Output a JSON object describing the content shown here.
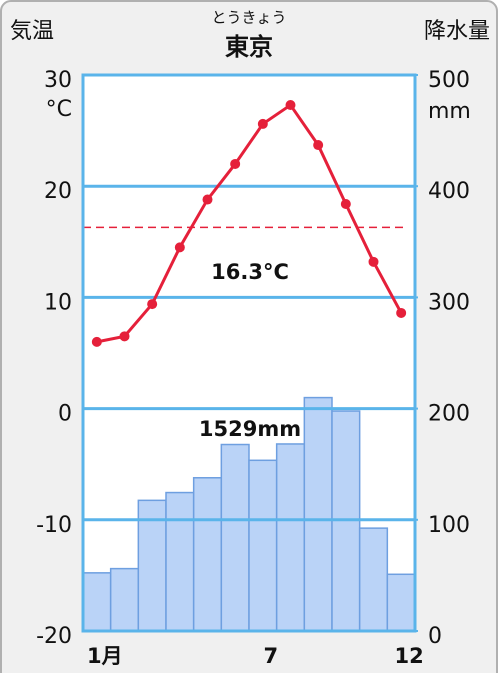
{
  "chart_data": {
    "type": "climate",
    "title": "東京",
    "subtitle": "とうきょう",
    "ylabel": "気温",
    "y2label": "降水量",
    "y_unit": "°C",
    "y2_unit": "mm",
    "categories": [
      "1月",
      null,
      null,
      null,
      null,
      null,
      "7",
      null,
      null,
      null,
      null,
      "12"
    ],
    "series": [
      {
        "name": "気温",
        "type": "line",
        "axis": "y",
        "color": "#e5203a",
        "values": [
          6.0,
          6.5,
          9.4,
          14.5,
          18.8,
          22.0,
          25.6,
          27.3,
          23.7,
          18.4,
          13.2,
          8.6
        ]
      },
      {
        "name": "降水量",
        "type": "bar",
        "axis": "y2",
        "color": "#bad3f7",
        "values": [
          52.3,
          56.1,
          117.5,
          124.5,
          137.8,
          167.7,
          153.5,
          168.2,
          209.9,
          197.8,
          92.5,
          51.0
        ]
      }
    ],
    "mean_temperature": {
      "value": 16.3,
      "label": "16.3°C"
    },
    "total_precipitation": {
      "value": 1529,
      "label": "1529mm"
    },
    "ylim": [
      -20,
      30
    ],
    "yticks": [
      30,
      20,
      10,
      0,
      -10,
      -20
    ],
    "y2lim": [
      0,
      500
    ],
    "y2ticks": [
      500,
      400,
      300,
      200,
      100,
      0
    ],
    "grid": true
  }
}
